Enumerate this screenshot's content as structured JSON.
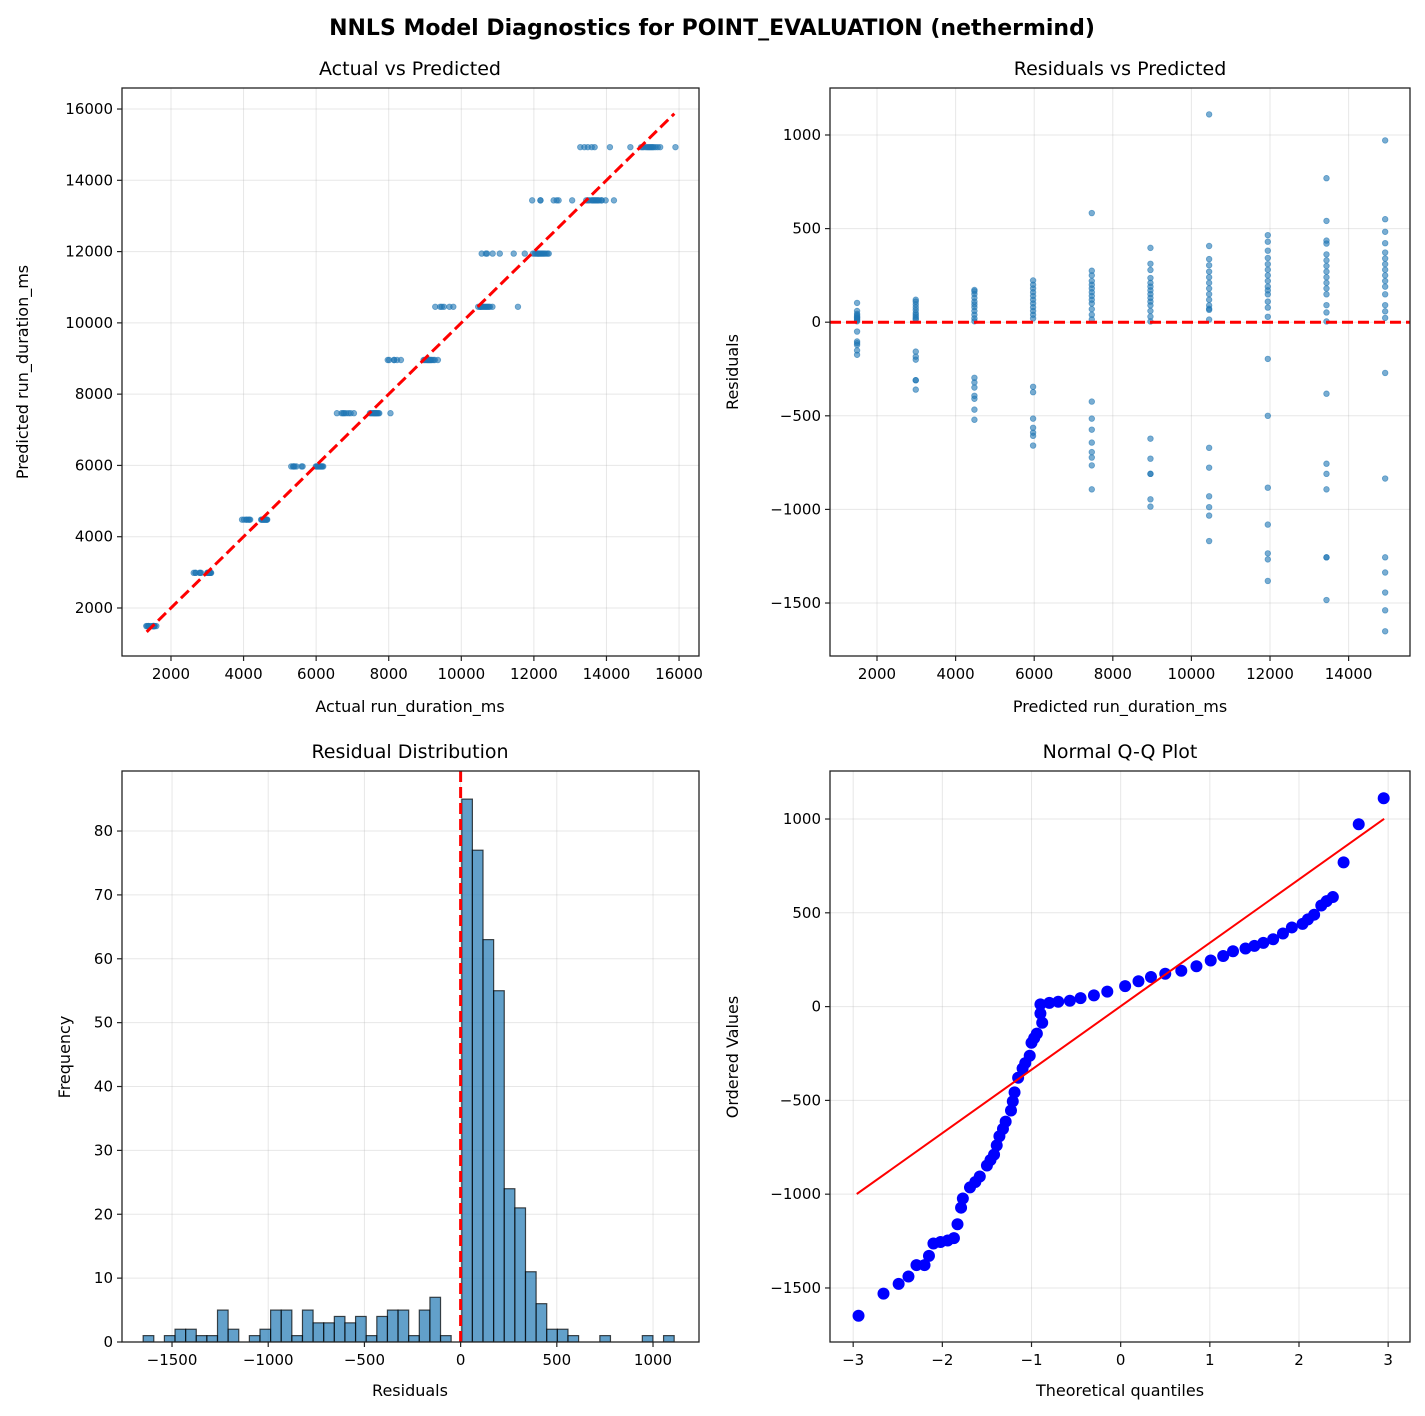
{
  "figure_title": "NNLS Model Diagnostics for POINT_EVALUATION (nethermind)",
  "colors": {
    "points": "#1f77b4",
    "reference": "#ff0000",
    "qq_points": "#0000ff",
    "hist_edge": "#000000"
  },
  "levels": [
    {
      "predicted": 1493,
      "residuals": [
        103,
        60,
        45,
        38,
        30,
        25,
        20,
        15,
        10,
        5,
        -50,
        -103,
        -112,
        -122,
        -151,
        -174
      ]
    },
    {
      "predicted": 2986,
      "residuals": [
        120,
        110,
        95,
        80,
        65,
        50,
        40,
        30,
        20,
        14,
        -157,
        -184,
        -200,
        -310,
        -310,
        -360
      ]
    },
    {
      "predicted": 4479,
      "residuals": [
        172,
        165,
        150,
        130,
        110,
        95,
        80,
        60,
        40,
        20,
        5,
        -297,
        -322,
        -349,
        -393,
        -409,
        -467,
        -521
      ]
    },
    {
      "predicted": 5972,
      "residuals": [
        223,
        200,
        180,
        160,
        140,
        120,
        100,
        80,
        60,
        40,
        20,
        -345,
        -374,
        -515,
        -564,
        -590,
        -607,
        -659
      ]
    },
    {
      "predicted": 7465,
      "residuals": [
        583,
        275,
        250,
        220,
        200,
        180,
        160,
        140,
        120,
        100,
        70,
        40,
        15,
        -424,
        -515,
        -574,
        -643,
        -694,
        -723,
        -765,
        -893
      ]
    },
    {
      "predicted": 8958,
      "residuals": [
        397,
        312,
        279,
        236,
        210,
        190,
        170,
        150,
        130,
        110,
        90,
        60,
        30,
        4,
        -622,
        -729,
        -810,
        -810,
        -946,
        -985
      ]
    },
    {
      "predicted": 10451,
      "residuals": [
        1110,
        407,
        337,
        304,
        270,
        240,
        210,
        180,
        150,
        120,
        90,
        72,
        66,
        14,
        -671,
        -777,
        -930,
        -988,
        -1033,
        -1169
      ]
    },
    {
      "predicted": 11944,
      "residuals": [
        465,
        430,
        382,
        343,
        310,
        280,
        250,
        220,
        190,
        170,
        149,
        110,
        78,
        29,
        -196,
        -500,
        -884,
        -1081,
        -1235,
        -1267,
        -1382
      ]
    },
    {
      "predicted": 13437,
      "residuals": [
        769,
        541,
        436,
        420,
        362,
        330,
        300,
        270,
        240,
        210,
        180,
        149,
        91,
        52,
        4,
        -382,
        -756,
        -810,
        -893,
        -1256,
        -1256,
        -1484
      ]
    },
    {
      "predicted": 14930,
      "residuals": [
        971,
        550,
        483,
        422,
        372,
        340,
        310,
        280,
        250,
        220,
        190,
        149,
        91,
        58,
        23,
        -271,
        -835,
        -1256,
        -1337,
        -1444,
        -1539,
        -1651
      ]
    }
  ],
  "chart_data": [
    {
      "type": "scatter",
      "title": "Actual vs Predicted",
      "xlabel": "Actual run_duration_ms",
      "ylabel": "Predicted run_duration_ms",
      "xlim": [
        650,
        16550
      ],
      "ylim": [
        653,
        16590
      ],
      "xticks": [
        2000,
        4000,
        6000,
        8000,
        10000,
        12000,
        14000,
        16000
      ],
      "xtick_labels": [
        "2000",
        "4000",
        "6000",
        "8000",
        "10000",
        "12000",
        "14000",
        "16000"
      ],
      "yticks": [
        2000,
        4000,
        6000,
        8000,
        10000,
        12000,
        14000,
        16000
      ],
      "ytick_labels": [
        "2000",
        "4000",
        "6000",
        "8000",
        "10000",
        "12000",
        "14000",
        "16000"
      ],
      "points_source": "levels: x = predicted + residual, y = predicted",
      "reference_line": {
        "from": [
          1330,
          1330
        ],
        "to": [
          15870,
          15870
        ],
        "style": "dashed"
      },
      "grid": true
    },
    {
      "type": "scatter",
      "title": "Residuals vs Predicted",
      "xlabel": "Predicted run_duration_ms",
      "ylabel": "Residuals",
      "xlim": [
        804,
        15562
      ],
      "ylim": [
        -1783,
        1251
      ],
      "xticks": [
        2000,
        4000,
        6000,
        8000,
        10000,
        12000,
        14000
      ],
      "xtick_labels": [
        "2000",
        "4000",
        "6000",
        "8000",
        "10000",
        "12000",
        "14000"
      ],
      "yticks": [
        -1500,
        -1000,
        -500,
        0,
        500,
        1000
      ],
      "ytick_labels": [
        "−1500",
        "−1000",
        "−500",
        "0",
        "500",
        "1000"
      ],
      "points_source": "levels: x = predicted, y = residual",
      "reference_line": {
        "y": 0,
        "style": "dashed"
      },
      "grid": true
    },
    {
      "type": "bar",
      "title": "Residual Distribution",
      "xlabel": "Residuals",
      "ylabel": "Frequency",
      "xlim": [
        -1760,
        1239
      ],
      "ylim": [
        0,
        89.4
      ],
      "bin_range": [
        -1650,
        1110
      ],
      "counts": [
        1,
        0,
        1,
        2,
        2,
        1,
        1,
        5,
        2,
        0,
        1,
        2,
        5,
        5,
        1,
        5,
        3,
        3,
        4,
        3,
        4,
        1,
        4,
        5,
        5,
        1,
        5,
        7,
        1,
        0,
        85,
        77,
        63,
        55,
        24,
        21,
        11,
        6,
        2,
        2,
        1,
        0,
        0,
        1,
        0,
        0,
        0,
        1,
        0,
        1
      ],
      "xticks": [
        -1500,
        -1000,
        -500,
        0,
        500,
        1000
      ],
      "xtick_labels": [
        "−1500",
        "−1000",
        "−500",
        "0",
        "500",
        "1000"
      ],
      "yticks": [
        0,
        10,
        20,
        30,
        40,
        50,
        60,
        70,
        80
      ],
      "ytick_labels": [
        "0",
        "10",
        "20",
        "30",
        "40",
        "50",
        "60",
        "70",
        "80"
      ],
      "reference_line": {
        "x": 0,
        "style": "dashed"
      },
      "grid": true
    },
    {
      "type": "scatter",
      "title": "Normal Q-Q Plot",
      "xlabel": "Theoretical quantiles",
      "ylabel": "Ordered Values",
      "xlim": [
        -3.26,
        3.245
      ],
      "ylim": [
        -1788,
        1256
      ],
      "xticks": [
        -3,
        -2,
        -1,
        0,
        1,
        2,
        3
      ],
      "xtick_labels": [
        "−3",
        "−2",
        "−1",
        "0",
        "1",
        "2",
        "3"
      ],
      "yticks": [
        -1500,
        -1000,
        -500,
        0,
        500,
        1000
      ],
      "ytick_labels": [
        "−1500",
        "−1000",
        "−500",
        "0",
        "500",
        "1000"
      ],
      "points": [
        [
          -2.94,
          -1648
        ],
        [
          -2.66,
          -1530
        ],
        [
          -2.49,
          -1478
        ],
        [
          -2.38,
          -1439
        ],
        [
          -2.29,
          -1378
        ],
        [
          -2.2,
          -1378
        ],
        [
          -2.15,
          -1329
        ],
        [
          -2.1,
          -1263
        ],
        [
          -2.02,
          -1255
        ],
        [
          -1.94,
          -1247
        ],
        [
          -1.87,
          -1234
        ],
        [
          -1.83,
          -1160
        ],
        [
          -1.79,
          -1072
        ],
        [
          -1.77,
          -1023
        ],
        [
          -1.69,
          -964
        ],
        [
          -1.63,
          -935
        ],
        [
          -1.58,
          -906
        ],
        [
          -1.5,
          -847
        ],
        [
          -1.46,
          -818
        ],
        [
          -1.42,
          -789
        ],
        [
          -1.39,
          -740
        ],
        [
          -1.36,
          -691
        ],
        [
          -1.32,
          -652
        ],
        [
          -1.29,
          -613
        ],
        [
          -1.23,
          -554
        ],
        [
          -1.21,
          -505
        ],
        [
          -1.19,
          -457
        ],
        [
          -1.15,
          -379
        ],
        [
          -1.1,
          -330
        ],
        [
          -1.07,
          -301
        ],
        [
          -1.02,
          -262
        ],
        [
          -1.0,
          -193
        ],
        [
          -0.97,
          -168
        ],
        [
          -0.94,
          -144
        ],
        [
          -0.88,
          -86
        ],
        [
          -0.9,
          -37
        ],
        [
          -0.9,
          12
        ],
        [
          -0.8,
          20
        ],
        [
          -0.7,
          26
        ],
        [
          -0.57,
          31
        ],
        [
          -0.45,
          45
        ],
        [
          -0.3,
          60
        ],
        [
          -0.15,
          80
        ],
        [
          0.05,
          109
        ],
        [
          0.2,
          135
        ],
        [
          0.34,
          158
        ],
        [
          0.5,
          175
        ],
        [
          0.68,
          191
        ],
        [
          0.85,
          215
        ],
        [
          1.01,
          246
        ],
        [
          1.15,
          270
        ],
        [
          1.26,
          295
        ],
        [
          1.4,
          310
        ],
        [
          1.5,
          324
        ],
        [
          1.6,
          340
        ],
        [
          1.71,
          359
        ],
        [
          1.82,
          390
        ],
        [
          1.92,
          422
        ],
        [
          2.04,
          441
        ],
        [
          2.1,
          465
        ],
        [
          2.17,
          490
        ],
        [
          2.25,
          539
        ],
        [
          2.31,
          562
        ],
        [
          2.38,
          584
        ],
        [
          2.5,
          769
        ],
        [
          2.67,
          972
        ],
        [
          2.95,
          1111
        ]
      ],
      "fit_line": {
        "from": [
          -2.96,
          -999
        ],
        "to": [
          2.955,
          1001
        ]
      },
      "grid": true
    }
  ]
}
